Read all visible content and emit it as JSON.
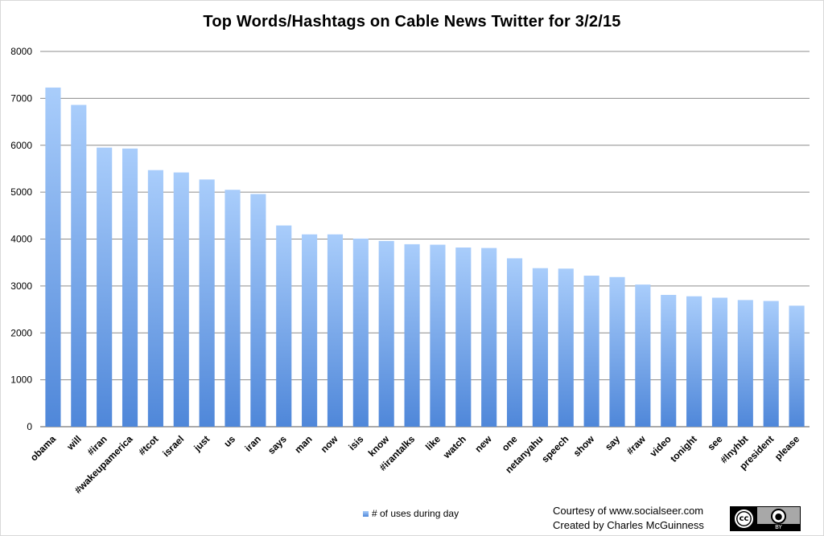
{
  "chart_data": {
    "type": "bar",
    "title": "Top Words/Hashtags on Cable News Twitter for 3/2/15",
    "xlabel": "",
    "ylabel": "",
    "ylim": [
      0,
      8000
    ],
    "yticks": [
      0,
      1000,
      2000,
      3000,
      4000,
      5000,
      6000,
      7000,
      8000
    ],
    "grid": true,
    "legend_position": "bottom",
    "categories": [
      "obama",
      "will",
      "#iran",
      "#wakeupamerica",
      "#tcot",
      "israel",
      "just",
      "us",
      "iran",
      "says",
      "man",
      "now",
      "isis",
      "know",
      "#irantalks",
      "like",
      "watch",
      "new",
      "one",
      "netanyahu",
      "speech",
      "show",
      "say",
      "#raw",
      "video",
      "tonight",
      "see",
      "#lnyhbt",
      "president",
      "please"
    ],
    "series": [
      {
        "name": "# of uses during day",
        "values": [
          7230,
          6860,
          5950,
          5930,
          5470,
          5420,
          5270,
          5050,
          4960,
          4290,
          4100,
          4100,
          4010,
          3960,
          3890,
          3880,
          3820,
          3810,
          3590,
          3380,
          3370,
          3220,
          3190,
          3030,
          2810,
          2780,
          2750,
          2700,
          2680,
          2580
        ]
      }
    ],
    "colors": {
      "bar_top": "#a9cdfb",
      "bar_bottom": "#4f87d9",
      "grid": "#8c8c8c"
    }
  },
  "footer": {
    "credit_line1": "Courtesy of www.socialseer.com",
    "credit_line2": "Created by Charles McGuinness",
    "license_badge_text": "BY",
    "license_cc_text": "cc"
  }
}
